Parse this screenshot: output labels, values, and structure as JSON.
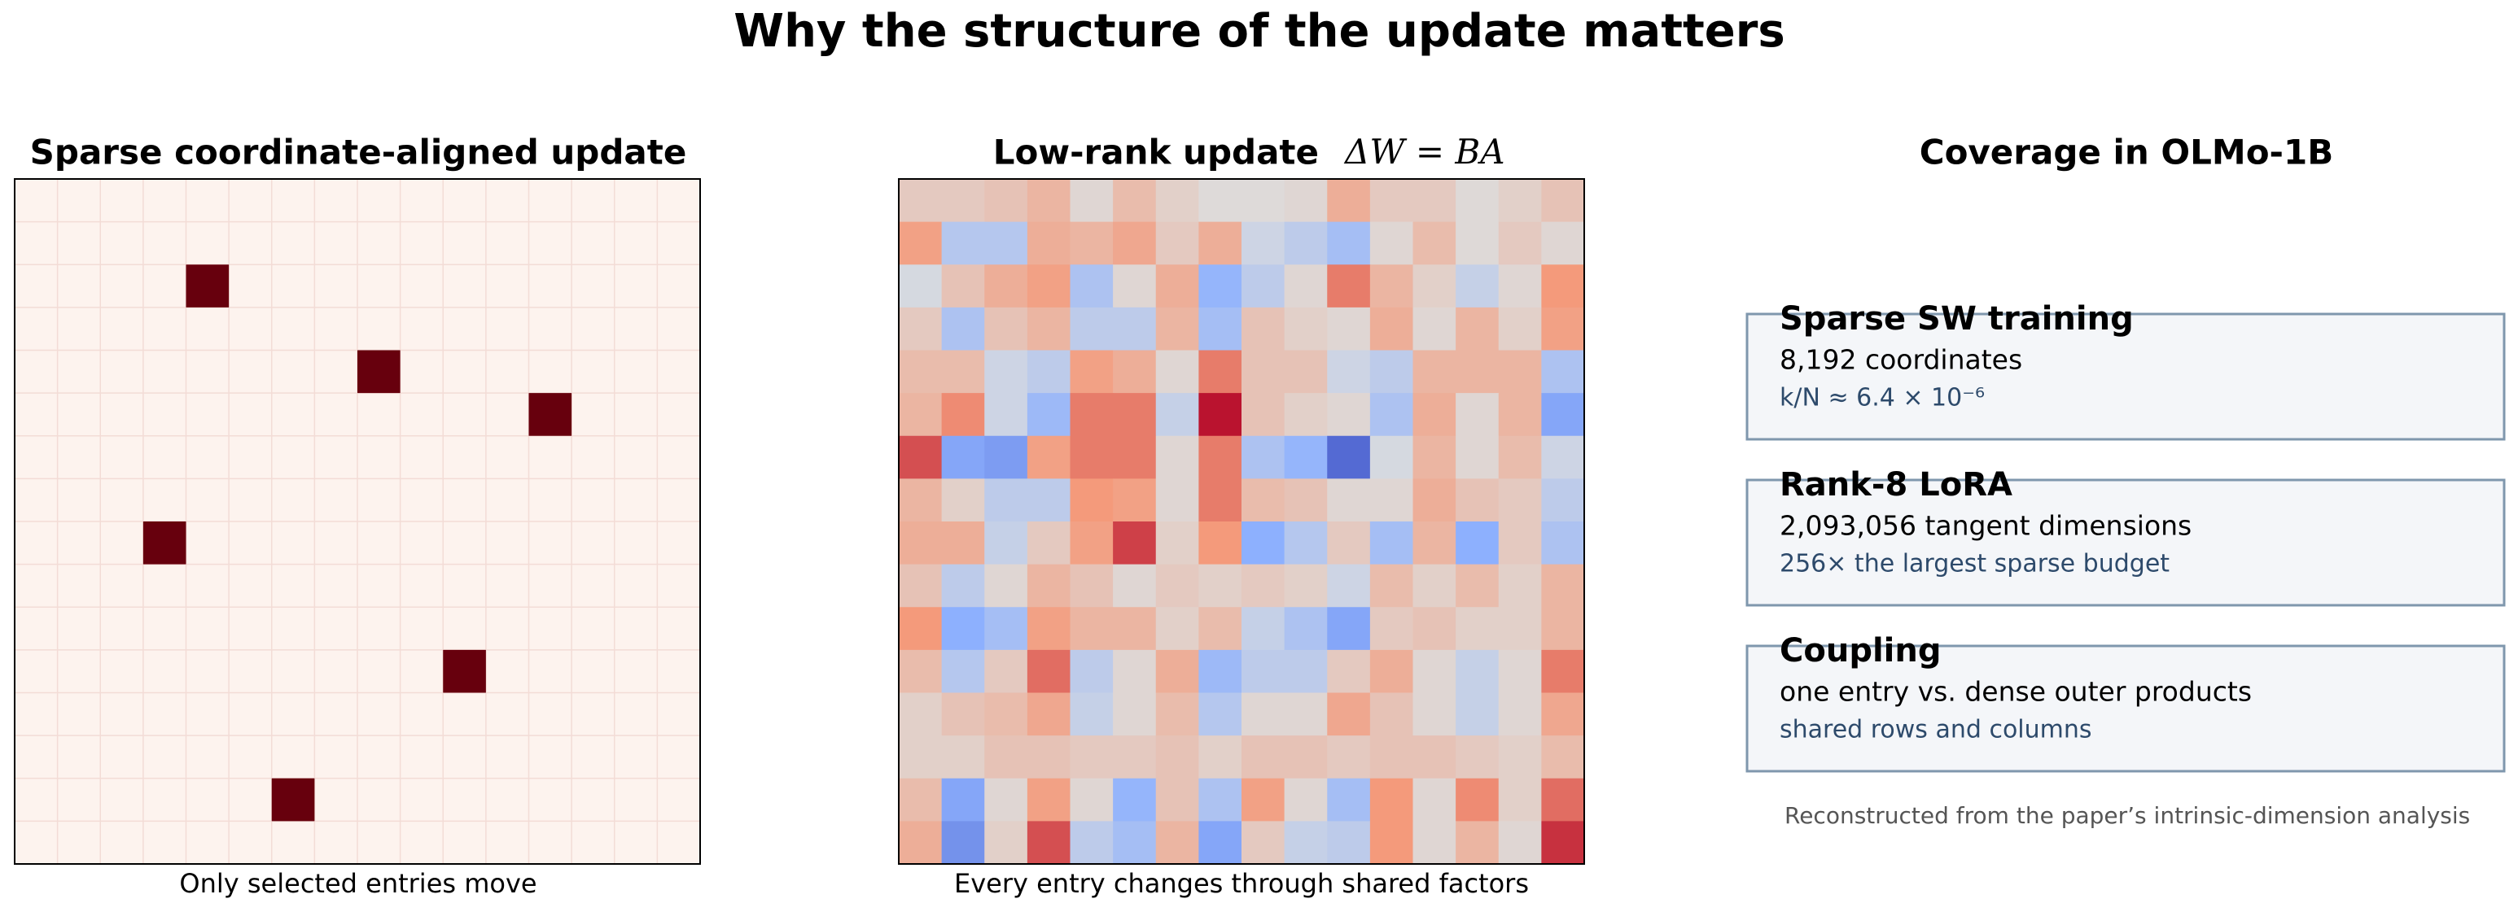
{
  "title": "Why the structure of the update matters",
  "sparse": {
    "title": "Sparse coordinate-aligned update",
    "caption": "Only selected entries move",
    "rows": 16,
    "cols": 16,
    "selected": [
      [
        2,
        4
      ],
      [
        4,
        8
      ],
      [
        5,
        12
      ],
      [
        8,
        3
      ],
      [
        11,
        10
      ],
      [
        14,
        6
      ]
    ],
    "color": "#67000d",
    "background": "#fdf3ee"
  },
  "lowrank": {
    "title": "Low-rank update",
    "formula": "ΔW = BA",
    "caption": "Every entry changes through shared factors",
    "color_range": [
      -1,
      1
    ],
    "values": [
      [
        0.15,
        0.15,
        0.2,
        0.3,
        0.05,
        0.25,
        0.1,
        0.02,
        0.02,
        0.05,
        0.35,
        0.15,
        0.15,
        0.03,
        0.1,
        0.2
      ],
      [
        0.45,
        -0.25,
        -0.25,
        0.35,
        0.3,
        0.4,
        0.15,
        0.35,
        -0.1,
        -0.2,
        -0.35,
        0.05,
        0.25,
        0.03,
        0.15,
        0.05
      ],
      [
        -0.05,
        0.2,
        0.35,
        0.45,
        -0.3,
        0.05,
        0.35,
        -0.45,
        -0.2,
        0.05,
        0.6,
        0.3,
        0.1,
        -0.15,
        0.05,
        0.5
      ],
      [
        0.15,
        -0.3,
        0.2,
        0.3,
        -0.2,
        -0.2,
        0.3,
        -0.35,
        0.2,
        0.1,
        0.05,
        0.35,
        0.05,
        0.3,
        0.1,
        0.45
      ],
      [
        0.25,
        0.25,
        -0.1,
        -0.2,
        0.45,
        0.35,
        0.05,
        0.6,
        0.2,
        0.2,
        -0.1,
        -0.2,
        0.3,
        0.3,
        0.3,
        -0.3
      ],
      [
        0.3,
        0.55,
        -0.1,
        -0.4,
        0.6,
        0.6,
        -0.15,
        0.95,
        0.2,
        0.1,
        0.05,
        -0.3,
        0.35,
        0.05,
        0.3,
        -0.55
      ],
      [
        0.75,
        -0.55,
        -0.6,
        0.45,
        0.6,
        0.6,
        0.05,
        0.6,
        -0.3,
        -0.45,
        -0.85,
        -0.05,
        0.3,
        0.05,
        0.25,
        -0.1
      ],
      [
        0.3,
        0.1,
        -0.2,
        -0.2,
        0.5,
        0.45,
        0.05,
        0.6,
        0.25,
        0.2,
        0.05,
        0.05,
        0.35,
        0.2,
        0.15,
        -0.2
      ],
      [
        0.35,
        0.35,
        -0.15,
        0.15,
        0.45,
        0.8,
        0.1,
        0.5,
        -0.5,
        -0.25,
        0.15,
        -0.35,
        0.3,
        -0.5,
        0.15,
        -0.3
      ],
      [
        0.2,
        -0.2,
        0.05,
        0.3,
        0.2,
        0.05,
        0.15,
        0.1,
        0.15,
        0.1,
        -0.1,
        0.25,
        0.1,
        0.25,
        0.1,
        0.3
      ],
      [
        0.5,
        -0.5,
        -0.35,
        0.45,
        0.3,
        0.3,
        0.1,
        0.25,
        -0.15,
        -0.3,
        -0.55,
        0.15,
        0.2,
        0.1,
        0.1,
        0.3
      ],
      [
        0.25,
        -0.25,
        0.15,
        0.65,
        -0.2,
        0.05,
        0.35,
        -0.4,
        -0.2,
        -0.2,
        0.15,
        0.35,
        0.05,
        -0.15,
        0.05,
        0.6
      ],
      [
        0.1,
        0.2,
        0.25,
        0.4,
        -0.15,
        0.05,
        0.25,
        -0.25,
        0.05,
        0.05,
        0.4,
        0.2,
        0.05,
        -0.15,
        0.05,
        0.4
      ],
      [
        0.1,
        0.1,
        0.2,
        0.2,
        0.15,
        0.15,
        0.2,
        0.1,
        0.2,
        0.2,
        0.15,
        0.2,
        0.2,
        0.15,
        0.1,
        0.25
      ],
      [
        0.25,
        -0.55,
        0.05,
        0.45,
        0.05,
        -0.45,
        0.2,
        -0.3,
        0.45,
        0.05,
        -0.35,
        0.5,
        0.05,
        0.55,
        0.1,
        0.65
      ],
      [
        0.35,
        -0.65,
        0.1,
        0.75,
        -0.2,
        -0.35,
        0.3,
        -0.55,
        0.15,
        -0.15,
        -0.2,
        0.5,
        0.05,
        0.3,
        0.05,
        0.85
      ]
    ]
  },
  "coverage": {
    "title": "Coverage in OLMo-1B",
    "cards": [
      {
        "title": "Sparse SW training",
        "line": "8,192 coordinates",
        "note": "k/N ≈ 6.4 × 10⁻⁶"
      },
      {
        "title": "Rank-8 LoRA",
        "line": "2,093,056 tangent dimensions",
        "note": "256× the largest sparse budget"
      },
      {
        "title": "Coupling",
        "line": "one entry vs. dense outer products",
        "note": "shared rows and columns"
      }
    ],
    "footer": "Reconstructed from the paper’s intrinsic-dimension analysis"
  }
}
